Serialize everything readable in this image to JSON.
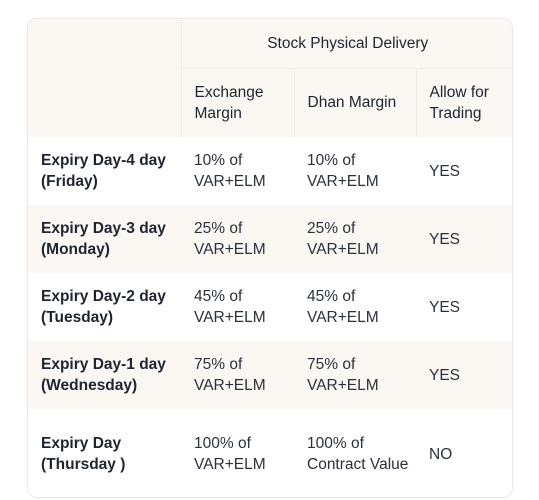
{
  "table": {
    "group_header": "Stock Physical Delivery",
    "columns": [
      "Exchange Margin",
      "Dhan Margin",
      "Allow for Trading"
    ],
    "rows": [
      {
        "label": "Expiry Day-4 day (Friday)",
        "exchange": "10% of VAR+ELM",
        "dhan": "10% of VAR+ELM",
        "allow": "YES"
      },
      {
        "label": "Expiry Day-3 day (Monday)",
        "exchange": "25% of VAR+ELM",
        "dhan": "25% of VAR+ELM",
        "allow": "YES"
      },
      {
        "label": "Expiry Day-2 day (Tuesday)",
        "exchange": "45% of VAR+ELM",
        "dhan": "45% of VAR+ELM",
        "allow": "YES"
      },
      {
        "label": "Expiry Day-1 day (Wednesday)",
        "exchange": "75% of VAR+ELM",
        "dhan": "75% of VAR+ELM",
        "allow": "YES"
      },
      {
        "label": "Expiry Day (Thursday )",
        "exchange": "100% of VAR+ELM",
        "dhan": "100% of Contract Value",
        "allow": "NO"
      }
    ]
  }
}
